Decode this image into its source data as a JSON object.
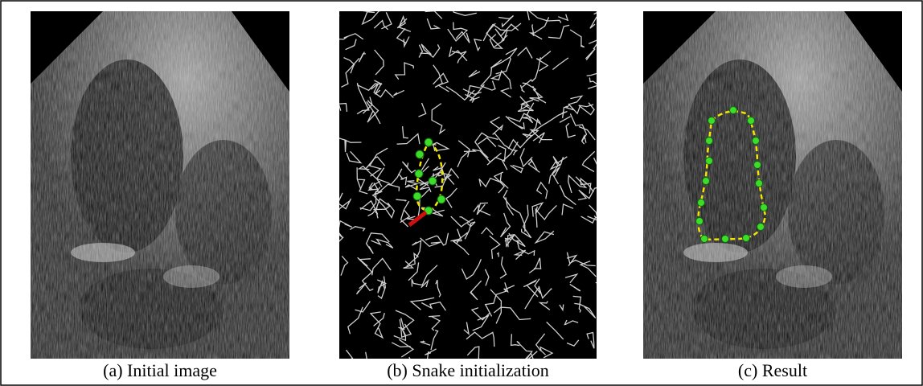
{
  "figure": {
    "panels": [
      {
        "caption": "(a) Initial image"
      },
      {
        "caption": "(b) Snake initialization"
      },
      {
        "caption": "(c) Result"
      }
    ]
  }
}
